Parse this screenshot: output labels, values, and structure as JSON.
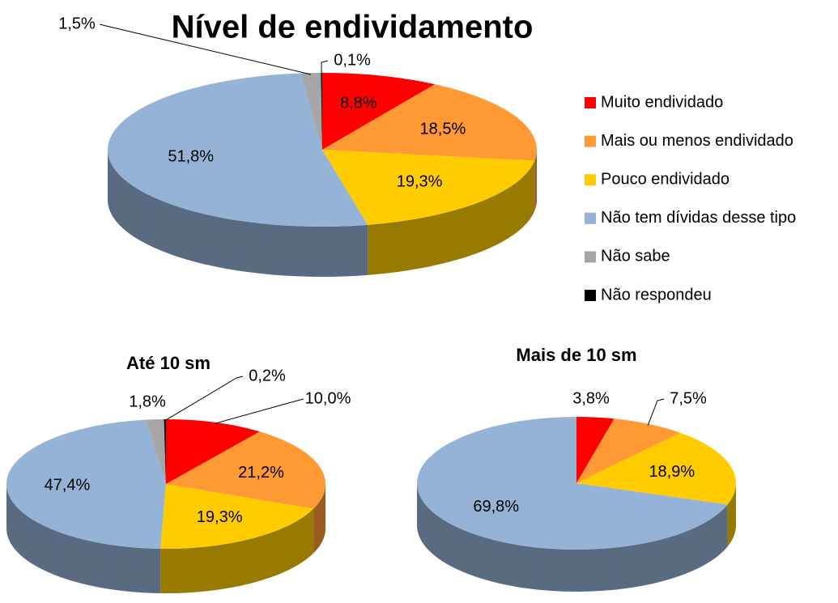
{
  "chart_data": [
    {
      "type": "pie",
      "title": "Nível de endividamento",
      "categories": [
        "Muito endividado",
        "Mais ou menos endividado",
        "Pouco endividado",
        "Não tem dívidas desse tipo",
        "Não sabe",
        "Não respondeu"
      ],
      "colors": [
        "#ff0000",
        "#ff9933",
        "#ffcc00",
        "#95b3d7",
        "#a6a6a6",
        "#000000"
      ],
      "values": [
        8.8,
        18.5,
        19.3,
        51.8,
        1.5,
        0.1
      ],
      "value_labels": [
        "8,8%",
        "18,5%",
        "19,3%",
        "51,8%",
        "1,5%",
        "0,1%"
      ],
      "legend": "right"
    },
    {
      "type": "pie",
      "title": "Até  10 sm",
      "values": [
        10.0,
        21.2,
        19.3,
        47.4,
        1.8,
        0.2
      ],
      "value_labels": [
        "10,0%",
        "21,2%",
        "19,3%",
        "47,4%",
        "1,8%",
        "0,2%"
      ]
    },
    {
      "type": "pie",
      "title": "Mais de 10 sm",
      "values": [
        3.8,
        7.5,
        18.9,
        69.8
      ],
      "value_labels": [
        "3,8%",
        "7,5%",
        "18,9%",
        "69,8%"
      ]
    }
  ]
}
